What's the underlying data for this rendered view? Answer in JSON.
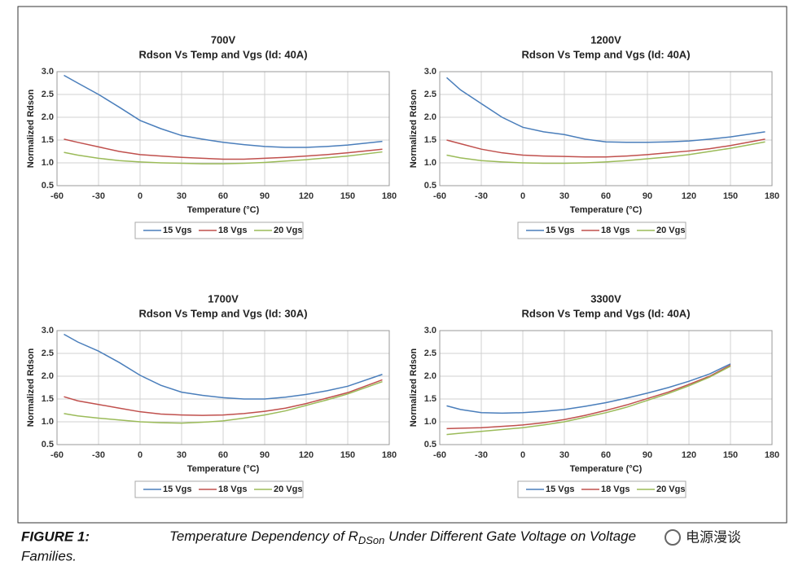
{
  "chart_data": [
    {
      "type": "line",
      "title": "700V",
      "subtitle": "Rdson Vs Temp and Vgs (Id: 40A)",
      "x_label": "Temperature (°C)",
      "y_label": "Normalized Rdson",
      "x": [
        -55,
        -45,
        -30,
        -15,
        0,
        15,
        30,
        45,
        60,
        75,
        90,
        105,
        120,
        135,
        150,
        175
      ],
      "series": [
        {
          "name": "15 Vgs",
          "color": "#4a7ebb",
          "values": [
            2.92,
            2.75,
            2.5,
            2.22,
            1.93,
            1.75,
            1.6,
            1.52,
            1.45,
            1.4,
            1.36,
            1.34,
            1.34,
            1.36,
            1.39,
            1.47
          ]
        },
        {
          "name": "18 Vgs",
          "color": "#c0504d",
          "values": [
            1.52,
            1.45,
            1.35,
            1.25,
            1.18,
            1.15,
            1.12,
            1.1,
            1.08,
            1.08,
            1.1,
            1.12,
            1.15,
            1.18,
            1.22,
            1.3
          ]
        },
        {
          "name": "20 Vgs",
          "color": "#9bbb59",
          "values": [
            1.23,
            1.17,
            1.1,
            1.05,
            1.02,
            1.0,
            0.99,
            0.98,
            0.98,
            0.99,
            1.01,
            1.04,
            1.07,
            1.11,
            1.15,
            1.24
          ]
        }
      ],
      "xlim": [
        -60,
        180
      ],
      "xticks": [
        -60,
        -30,
        0,
        30,
        60,
        90,
        120,
        150,
        180
      ],
      "ylim": [
        0.5,
        3
      ],
      "yticks": [
        0.5,
        {
          "value": 1,
          "label": "1.0"
        },
        1.5,
        {
          "value": 2,
          "label": "2.0"
        },
        2.5,
        {
          "value": 3,
          "label": "3.0"
        }
      ],
      "grid": true
    },
    {
      "type": "line",
      "title": "1200V",
      "subtitle": "Rdson Vs Temp and Vgs (Id: 40A)",
      "x_label": "Temperature (°C)",
      "y_label": "Normalized Rdson",
      "x": [
        -55,
        -45,
        -30,
        -15,
        0,
        15,
        30,
        45,
        60,
        75,
        90,
        105,
        120,
        135,
        150,
        175
      ],
      "series": [
        {
          "name": "15 Vgs",
          "color": "#4a7ebb",
          "values": [
            2.87,
            2.6,
            2.3,
            2.0,
            1.78,
            1.68,
            1.62,
            1.52,
            1.46,
            1.45,
            1.45,
            1.46,
            1.48,
            1.52,
            1.57,
            1.68
          ]
        },
        {
          "name": "18 Vgs",
          "color": "#c0504d",
          "values": [
            1.5,
            1.42,
            1.3,
            1.22,
            1.17,
            1.15,
            1.14,
            1.13,
            1.13,
            1.15,
            1.18,
            1.22,
            1.26,
            1.31,
            1.38,
            1.52
          ]
        },
        {
          "name": "20 Vgs",
          "color": "#9bbb59",
          "values": [
            1.17,
            1.11,
            1.05,
            1.02,
            1.0,
            0.99,
            0.99,
            1.0,
            1.02,
            1.05,
            1.09,
            1.13,
            1.18,
            1.25,
            1.32,
            1.46
          ]
        }
      ],
      "xlim": [
        -60,
        180
      ],
      "xticks": [
        -60,
        -30,
        0,
        30,
        60,
        90,
        120,
        150,
        180
      ],
      "ylim": [
        0.5,
        3
      ],
      "yticks": [
        0.5,
        {
          "value": 1,
          "label": "1.0"
        },
        1.5,
        {
          "value": 2,
          "label": "2.0"
        },
        2.5,
        {
          "value": 3,
          "label": "3.0"
        }
      ],
      "grid": true
    },
    {
      "type": "line",
      "title": "1700V",
      "subtitle": "Rdson Vs Temp and Vgs (Id: 30A)",
      "x_label": "Temperature (°C)",
      "y_label": "Normalized Rdson",
      "x": [
        -55,
        -45,
        -30,
        -15,
        0,
        15,
        30,
        45,
        60,
        75,
        90,
        105,
        120,
        135,
        150,
        175
      ],
      "series": [
        {
          "name": "15 Vgs",
          "color": "#4a7ebb",
          "values": [
            2.92,
            2.75,
            2.55,
            2.3,
            2.02,
            1.8,
            1.65,
            1.58,
            1.53,
            1.5,
            1.5,
            1.54,
            1.6,
            1.68,
            1.78,
            2.04
          ]
        },
        {
          "name": "18 Vgs",
          "color": "#c0504d",
          "values": [
            1.55,
            1.46,
            1.38,
            1.3,
            1.22,
            1.17,
            1.15,
            1.14,
            1.15,
            1.18,
            1.23,
            1.3,
            1.4,
            1.52,
            1.64,
            1.92
          ]
        },
        {
          "name": "20 Vgs",
          "color": "#9bbb59",
          "values": [
            1.18,
            1.13,
            1.08,
            1.04,
            1.0,
            0.98,
            0.97,
            0.99,
            1.02,
            1.08,
            1.15,
            1.24,
            1.36,
            1.48,
            1.61,
            1.88
          ]
        }
      ],
      "xlim": [
        -60,
        180
      ],
      "xticks": [
        -60,
        -30,
        0,
        30,
        60,
        90,
        120,
        150,
        180
      ],
      "ylim": [
        0.5,
        3
      ],
      "yticks": [
        0.5,
        {
          "value": 1,
          "label": "1.0"
        },
        1.5,
        {
          "value": 2,
          "label": "2.0"
        },
        2.5,
        {
          "value": 3,
          "label": "3.0"
        }
      ],
      "grid": true
    },
    {
      "type": "line",
      "title": "3300V",
      "subtitle": "Rdson Vs Temp and Vgs (Id: 40A)",
      "x_label": "Temperature (°C)",
      "y_label": "Normalized Rdson",
      "x": [
        -55,
        -45,
        -30,
        -15,
        0,
        15,
        30,
        45,
        60,
        75,
        90,
        105,
        120,
        135,
        150
      ],
      "series": [
        {
          "name": "15 Vgs",
          "color": "#4a7ebb",
          "values": [
            1.35,
            1.27,
            1.2,
            1.19,
            1.2,
            1.23,
            1.27,
            1.34,
            1.42,
            1.52,
            1.63,
            1.75,
            1.89,
            2.05,
            2.27
          ]
        },
        {
          "name": "18 Vgs",
          "color": "#c0504d",
          "values": [
            0.85,
            0.86,
            0.87,
            0.9,
            0.93,
            0.98,
            1.05,
            1.14,
            1.25,
            1.37,
            1.51,
            1.65,
            1.82,
            2.0,
            2.24
          ]
        },
        {
          "name": "20 Vgs",
          "color": "#9bbb59",
          "values": [
            0.72,
            0.75,
            0.79,
            0.83,
            0.87,
            0.93,
            1.0,
            1.1,
            1.2,
            1.32,
            1.47,
            1.62,
            1.79,
            1.98,
            2.22
          ]
        }
      ],
      "xlim": [
        -60,
        180
      ],
      "xticks": [
        -60,
        -30,
        0,
        30,
        60,
        90,
        120,
        150,
        180
      ],
      "ylim": [
        0.5,
        3
      ],
      "yticks": [
        0.5,
        {
          "value": 1,
          "label": "1.0"
        },
        1.5,
        {
          "value": 2,
          "label": "2.0"
        },
        2.5,
        {
          "value": 3,
          "label": "3.0"
        }
      ],
      "grid": true
    }
  ],
  "caption": {
    "label": "FIGURE 1:",
    "text_1": "Temperature Dependency of R",
    "subscript": "DSon",
    "text_2": " Under Different Gate Voltage on Voltage",
    "text_3": "Families."
  },
  "watermark": "电源漫谈"
}
